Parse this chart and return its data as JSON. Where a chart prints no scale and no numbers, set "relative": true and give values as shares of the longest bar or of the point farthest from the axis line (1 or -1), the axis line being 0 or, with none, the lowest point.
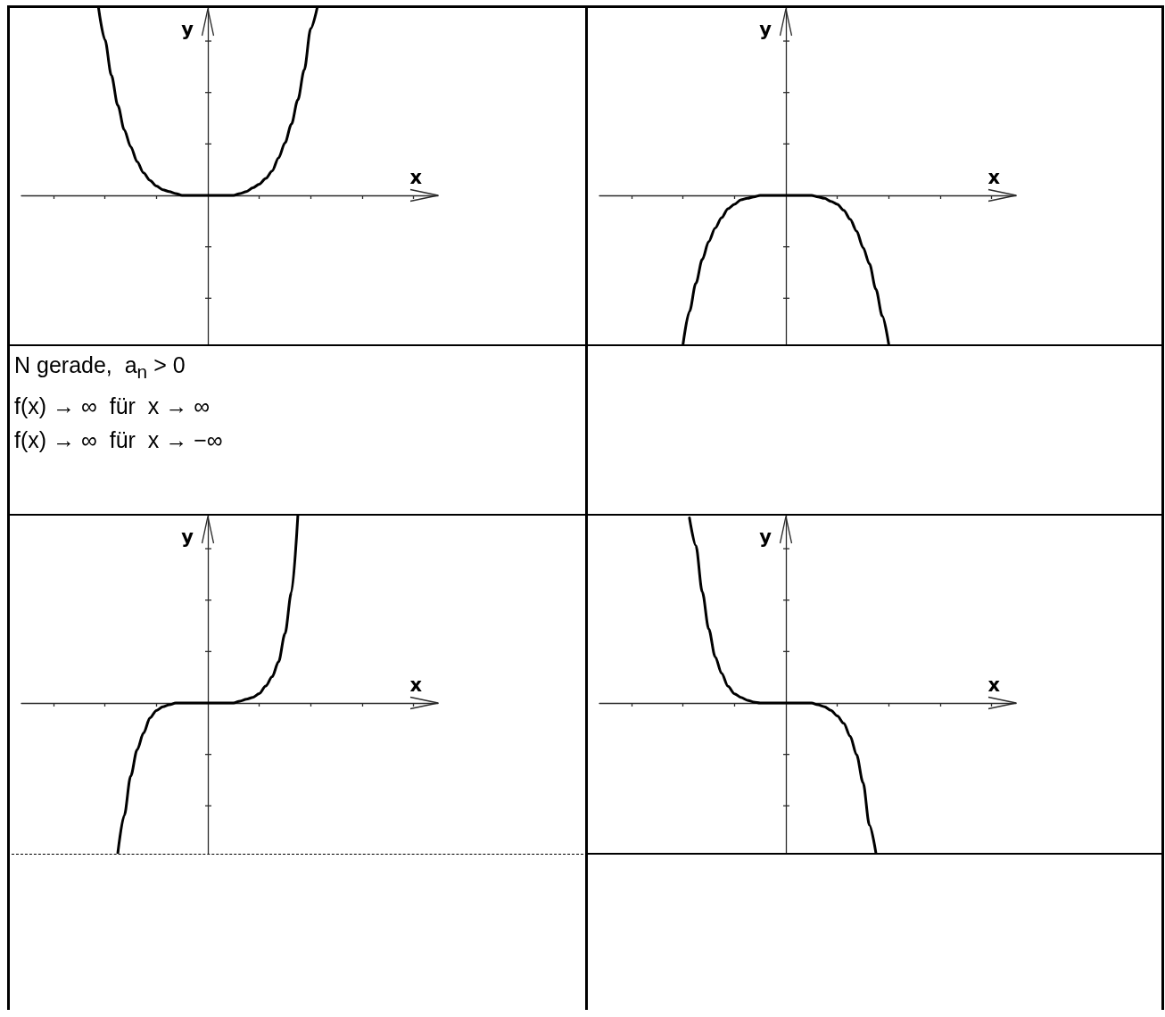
{
  "chart_data": [
    {
      "type": "line",
      "xlabel": "x",
      "ylabel": "y",
      "relative": true,
      "categories": [
        null,
        null,
        null,
        null,
        null,
        null,
        null,
        null,
        null,
        null,
        null,
        null,
        null,
        null,
        null,
        null,
        null,
        null,
        null,
        null,
        null,
        null,
        null,
        null,
        null,
        null,
        null,
        null,
        null,
        null,
        null,
        null,
        null,
        null,
        null,
        null,
        null,
        null,
        null,
        null,
        null,
        null,
        null,
        null,
        null,
        null,
        null,
        null,
        null,
        null,
        null,
        null,
        null,
        null,
        null,
        null,
        null,
        null,
        null
      ],
      "series": [
        {
          "color": "#000000",
          "values": [
            null,
            null,
            null,
            null,
            null,
            null,
            null,
            null,
            null,
            null,
            null,
            null,
            1,
            0.83,
            0.64,
            0.48,
            0.35,
            0.26,
            0.18,
            0.12,
            0.08,
            0.05,
            0.03,
            0.02,
            0.01,
            0,
            0,
            0,
            0,
            0,
            0,
            0,
            0,
            0,
            0.01,
            0.02,
            0.04,
            0.06,
            0.09,
            0.13,
            0.2,
            0.28,
            0.38,
            0.51,
            0.67,
            0.89,
            1,
            null,
            null,
            null,
            null,
            null,
            null,
            null,
            null,
            null,
            null,
            null,
            null
          ]
        }
      ]
    },
    {
      "type": "line",
      "xlabel": "x",
      "ylabel": "y",
      "relative": true,
      "categories": [
        null,
        null,
        null,
        null,
        null,
        null,
        null,
        null,
        null,
        null,
        null,
        null,
        null,
        null,
        null,
        null,
        null,
        null,
        null,
        null,
        null,
        null,
        null,
        null,
        null,
        null,
        null,
        null,
        null,
        null,
        null,
        null,
        null,
        null,
        null,
        null,
        null,
        null,
        null,
        null,
        null,
        null,
        null,
        null,
        null,
        null,
        null,
        null,
        null,
        null,
        null,
        null,
        null,
        null,
        null,
        null,
        null,
        null,
        null
      ],
      "series": [
        {
          "color": "#000000",
          "values": [
            null,
            null,
            null,
            null,
            null,
            null,
            null,
            null,
            null,
            null,
            null,
            null,
            null,
            -1,
            -0.78,
            -0.59,
            -0.43,
            -0.31,
            -0.22,
            -0.15,
            -0.09,
            -0.06,
            -0.03,
            -0.02,
            -0.01,
            0,
            0,
            0,
            0,
            0,
            0,
            0,
            0,
            0,
            -0.01,
            -0.02,
            -0.04,
            -0.06,
            -0.1,
            -0.16,
            -0.24,
            -0.35,
            -0.46,
            -0.63,
            -0.81,
            -1,
            null,
            null,
            null,
            null,
            null,
            null,
            null,
            null,
            null,
            null,
            null,
            null,
            null
          ]
        }
      ]
    },
    {
      "type": "other",
      "annotations": [
        "N gerade,  a$_{n}$ > 0",
        "f(x) → ∞  für  x → ∞",
        "f(x) → ∞  für  x → −∞"
      ]
    },
    {
      "type": "line",
      "xlabel": "x",
      "ylabel": "y",
      "relative": true,
      "categories": [
        null,
        null,
        null,
        null,
        null,
        null,
        null,
        null,
        null,
        null,
        null,
        null,
        null,
        null,
        null,
        null,
        null,
        null,
        null,
        null,
        null,
        null,
        null,
        null,
        null,
        null,
        null,
        null,
        null,
        null,
        null,
        null,
        null,
        null,
        null,
        null,
        null,
        null,
        null,
        null,
        null,
        null,
        null,
        null,
        null,
        null,
        null,
        null,
        null,
        null,
        null,
        null,
        null,
        null,
        null,
        null,
        null,
        null,
        null
      ],
      "series": [
        {
          "color": "#000000",
          "values": [
            null,
            null,
            null,
            null,
            null,
            null,
            null,
            null,
            null,
            null,
            null,
            null,
            null,
            null,
            null,
            -0.8,
            -0.6,
            -0.39,
            -0.25,
            -0.16,
            -0.08,
            -0.04,
            -0.02,
            -0.01,
            0,
            0,
            0,
            0,
            0,
            0,
            0,
            0,
            0,
            0,
            0.01,
            0.02,
            0.03,
            0.05,
            0.09,
            0.14,
            0.22,
            0.37,
            0.59,
            1,
            null,
            null,
            null,
            null,
            null,
            null,
            null,
            null,
            null,
            null,
            null,
            null,
            null,
            null,
            null
          ]
        }
      ]
    },
    {
      "type": "line",
      "xlabel": "x",
      "ylabel": "y",
      "relative": true,
      "categories": [
        null,
        null,
        null,
        null,
        null,
        null,
        null,
        null,
        null,
        null,
        null,
        null,
        null,
        null,
        null,
        null,
        null,
        null,
        null,
        null,
        null,
        null,
        null,
        null,
        null,
        null,
        null,
        null,
        null,
        null,
        null,
        null,
        null,
        null,
        null,
        null,
        null,
        null,
        null,
        null,
        null,
        null,
        null,
        null,
        null,
        null,
        null,
        null,
        null,
        null,
        null,
        null,
        null,
        null,
        null,
        null,
        null,
        null,
        null
      ],
      "series": [
        {
          "color": "#000000",
          "values": [
            null,
            null,
            null,
            null,
            null,
            null,
            null,
            null,
            null,
            null,
            null,
            null,
            null,
            null,
            1,
            0.85,
            0.6,
            0.4,
            0.25,
            0.16,
            0.09,
            0.05,
            0.03,
            0.015,
            0.005,
            0,
            0,
            0,
            0,
            0,
            0,
            0,
            0,
            0,
            -0.01,
            -0.02,
            -0.04,
            -0.07,
            -0.11,
            -0.18,
            -0.28,
            -0.43,
            -0.66,
            -0.81,
            null,
            null,
            null,
            null,
            null,
            null,
            null,
            null,
            null,
            null,
            null,
            null,
            null,
            null,
            null
          ]
        }
      ]
    }
  ]
}
